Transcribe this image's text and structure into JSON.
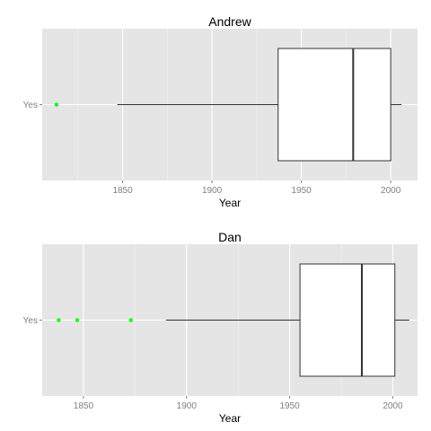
{
  "chart_data": [
    {
      "type": "boxplot",
      "title": "Andrew",
      "xlabel": "Year",
      "ylabel": "",
      "category": "Yes",
      "xlim": [
        1805,
        2015
      ],
      "xticks": [
        1850,
        1900,
        1950,
        2000
      ],
      "orientation": "horizontal",
      "box": {
        "whisker_low": 1847,
        "q1": 1937,
        "median": 1979,
        "q3": 2000,
        "whisker_high": 2006
      },
      "outliers": [
        1813
      ],
      "outlier_color": "#00ff00",
      "grid": true,
      "panel_color": "#e5e5e5"
    },
    {
      "type": "boxplot",
      "title": "Dan",
      "xlabel": "Year",
      "ylabel": "",
      "category": "Yes",
      "xlim": [
        1830,
        2012
      ],
      "xticks": [
        1850,
        1900,
        1950,
        2000
      ],
      "orientation": "horizontal",
      "box": {
        "whisker_low": 1890,
        "q1": 1955,
        "median": 1985,
        "q3": 2001,
        "whisker_high": 2008
      },
      "outliers": [
        1838,
        1847,
        1873
      ],
      "outlier_color": "#00ff00",
      "grid": true,
      "panel_color": "#e5e5e5"
    }
  ]
}
